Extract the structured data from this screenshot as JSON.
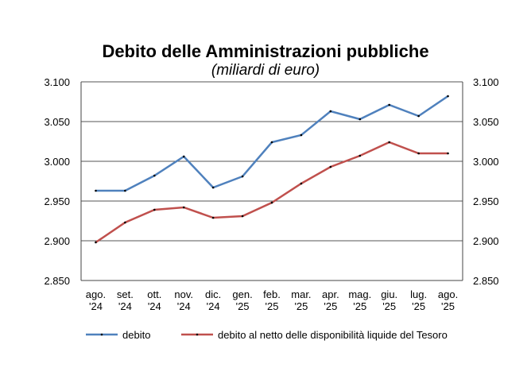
{
  "chart_data": {
    "type": "line",
    "title": "Debito delle Amministrazioni pubbliche",
    "subtitle": "(miliardi di euro)",
    "categories": [
      [
        "ago.",
        "'24"
      ],
      [
        "set.",
        "'24"
      ],
      [
        "ott.",
        "'24"
      ],
      [
        "nov.",
        "'24"
      ],
      [
        "dic.",
        "'24"
      ],
      [
        "gen.",
        "'25"
      ],
      [
        "feb.",
        "'25"
      ],
      [
        "mar.",
        "'25"
      ],
      [
        "apr.",
        "'25"
      ],
      [
        "mag.",
        "'25"
      ],
      [
        "giu.",
        "'25"
      ],
      [
        "lug.",
        "'25"
      ],
      [
        "ago.",
        "'25"
      ]
    ],
    "series": [
      {
        "name": "debito",
        "color": "#4f81bd",
        "values": [
          2963,
          2963,
          2982,
          3006,
          2967,
          2981,
          3024,
          3033,
          3063,
          3053,
          3071,
          3057,
          3082
        ]
      },
      {
        "name": "debito al netto delle disponibilità liquide del Tesoro",
        "color": "#c0504d",
        "values": [
          2898,
          2923,
          2939,
          2942,
          2929,
          2931,
          2948,
          2972,
          2993,
          3007,
          3024,
          3010,
          3010
        ]
      }
    ],
    "ylim": [
      2850,
      3100
    ],
    "yticks": [
      2850,
      2900,
      2950,
      3000,
      3050,
      3100
    ],
    "ytick_labels": [
      "2.850",
      "2.900",
      "2.950",
      "3.000",
      "3.050",
      "3.100"
    ],
    "grid": true,
    "legend": "bottom"
  }
}
